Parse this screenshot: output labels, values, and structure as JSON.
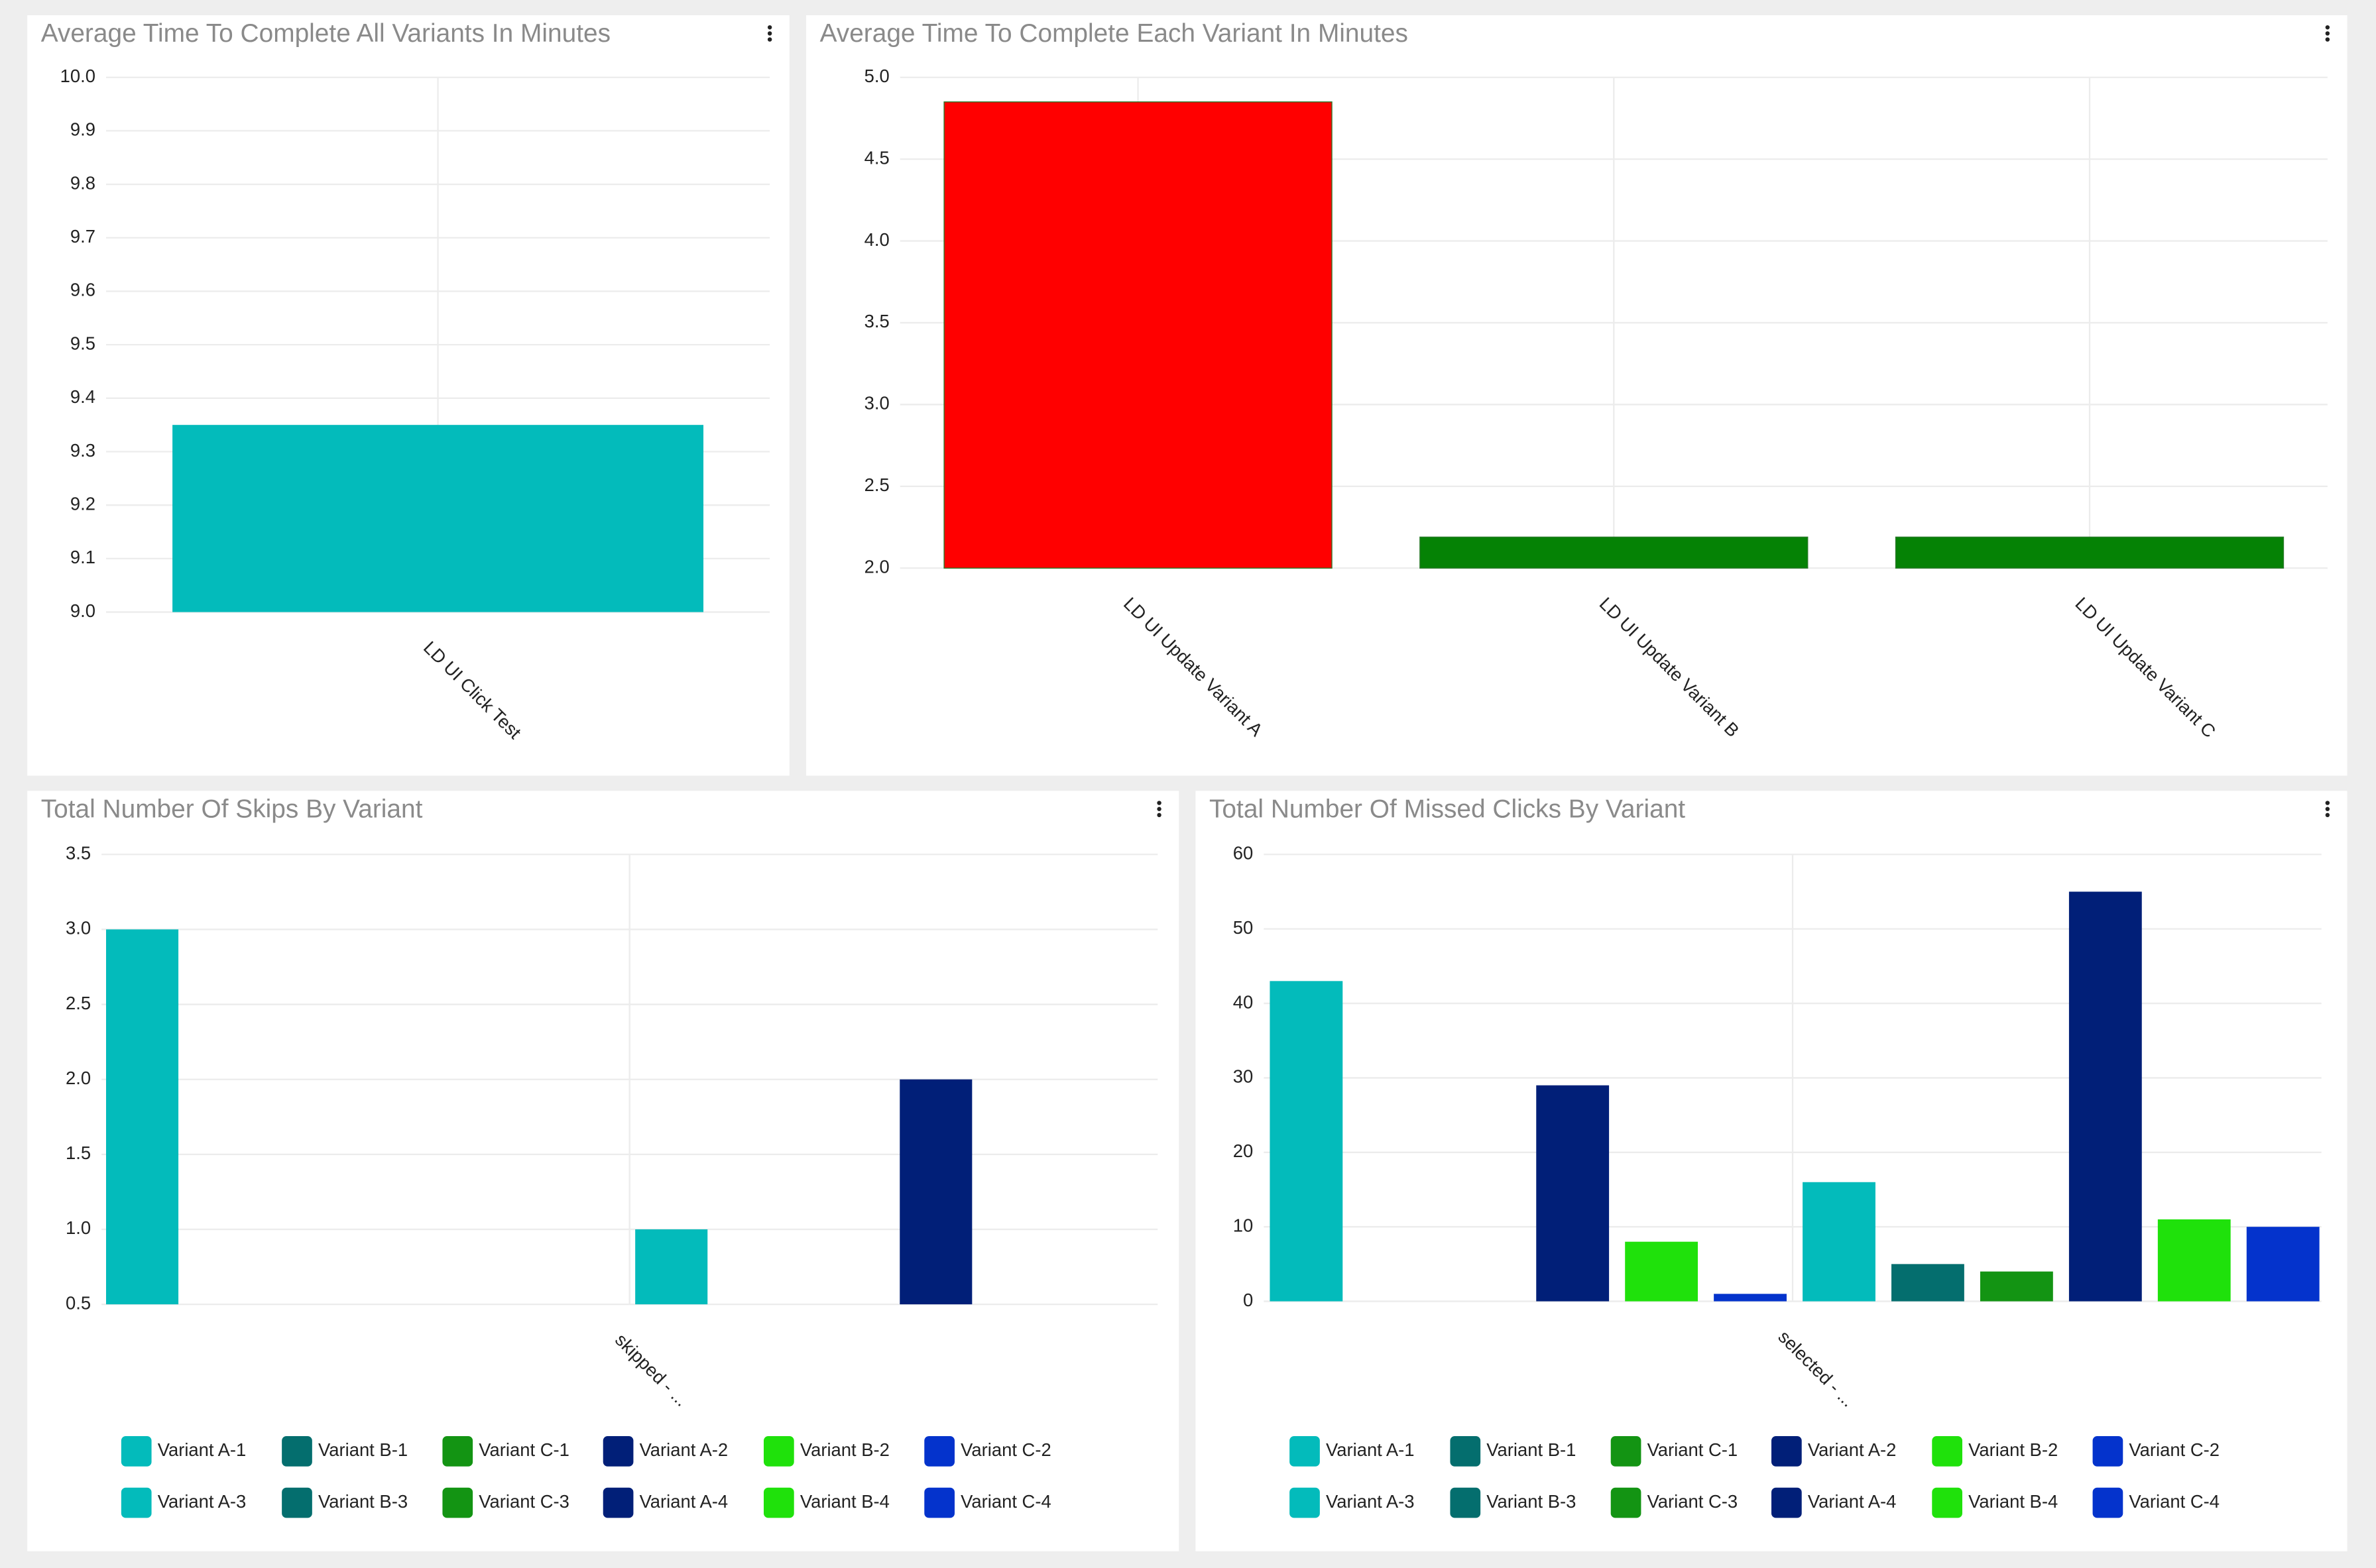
{
  "chart_data": [
    {
      "type": "bar",
      "title": "Average Time To Complete All Variants In Minutes",
      "categories": [
        "LD UI Click Test"
      ],
      "values": [
        9.35
      ],
      "color": "#03bbbb",
      "ylim": [
        9.0,
        10.0
      ],
      "yticks": [
        {
          "value": 9.0,
          "label": "9.0"
        },
        9.1,
        9.2,
        9.3,
        9.4,
        9.5,
        9.6,
        9.7,
        9.8,
        9.9,
        {
          "value": 10.0,
          "label": "10.0"
        }
      ],
      "grid": true
    },
    {
      "type": "bar",
      "title": "Average Time To Complete Each Variant In Minutes",
      "categories": [
        "LD UI Update Variant A",
        "LD UI Update Variant B",
        "LD UI Update Variant C"
      ],
      "values": [
        4.85,
        2.19,
        2.19
      ],
      "colors": [
        "#ff0000",
        "#058205",
        "#058205"
      ],
      "ylim": [
        2.0,
        5.0
      ],
      "yticks": [
        {
          "value": 2.0,
          "label": "2.0"
        },
        2.5,
        {
          "value": 3.0,
          "label": "3.0"
        },
        3.5,
        {
          "value": 4.0,
          "label": "4.0"
        },
        4.5,
        {
          "value": 5.0,
          "label": "5.0"
        }
      ],
      "grid": true
    },
    {
      "type": "grouped_bar",
      "title": "Total Number Of Skips By Variant",
      "categories": [
        "skipped - ..."
      ],
      "series": [
        {
          "name": "Variant A-1",
          "color": "#03bbbb",
          "values": [
            3.0
          ]
        },
        {
          "name": "Variant B-1",
          "color": "#046e6e",
          "values": [
            null
          ]
        },
        {
          "name": "Variant C-1",
          "color": "#139413",
          "values": [
            null
          ]
        },
        {
          "name": "Variant A-2",
          "color": "#011f78",
          "values": [
            null
          ]
        },
        {
          "name": "Variant B-2",
          "color": "#1fe10b",
          "values": [
            null
          ]
        },
        {
          "name": "Variant C-2",
          "color": "#0433cc",
          "values": [
            null
          ]
        },
        {
          "name": "Variant A-3",
          "color": "#03bbbb",
          "values": [
            1.0
          ]
        },
        {
          "name": "Variant B-3",
          "color": "#046e6e",
          "values": [
            null
          ]
        },
        {
          "name": "Variant C-3",
          "color": "#139413",
          "values": [
            null
          ]
        },
        {
          "name": "Variant A-4",
          "color": "#011f78",
          "values": [
            2.0
          ]
        },
        {
          "name": "Variant B-4",
          "color": "#1fe10b",
          "values": [
            null
          ]
        },
        {
          "name": "Variant C-4",
          "color": "#0433cc",
          "values": [
            null
          ]
        }
      ],
      "ylim": [
        0.5,
        3.5
      ],
      "yticks": [
        0.5,
        {
          "value": 1.0,
          "label": "1.0"
        },
        1.5,
        {
          "value": 2.0,
          "label": "2.0"
        },
        2.5,
        {
          "value": 3.0,
          "label": "3.0"
        },
        3.5
      ],
      "grid": true
    },
    {
      "type": "grouped_bar",
      "title": "Total Number Of Missed Clicks By Variant",
      "categories": [
        "selected - ..."
      ],
      "series": [
        {
          "name": "Variant A-1",
          "color": "#03bbbb",
          "values": [
            43
          ]
        },
        {
          "name": "Variant B-1",
          "color": "#046e6e",
          "values": [
            null
          ]
        },
        {
          "name": "Variant C-1",
          "color": "#139413",
          "values": [
            null
          ]
        },
        {
          "name": "Variant A-2",
          "color": "#011f78",
          "values": [
            29
          ]
        },
        {
          "name": "Variant B-2",
          "color": "#1fe10b",
          "values": [
            8
          ]
        },
        {
          "name": "Variant C-2",
          "color": "#0433cc",
          "values": [
            1
          ]
        },
        {
          "name": "Variant A-3",
          "color": "#03bbbb",
          "values": [
            16
          ]
        },
        {
          "name": "Variant B-3",
          "color": "#046e6e",
          "values": [
            5
          ]
        },
        {
          "name": "Variant C-3",
          "color": "#139413",
          "values": [
            4
          ]
        },
        {
          "name": "Variant A-4",
          "color": "#011f78",
          "values": [
            55
          ]
        },
        {
          "name": "Variant B-4",
          "color": "#1fe10b",
          "values": [
            11
          ]
        },
        {
          "name": "Variant C-4",
          "color": "#0433cc",
          "values": [
            10
          ]
        }
      ],
      "ylim": [
        0,
        60
      ],
      "yticks": [
        0,
        10,
        20,
        30,
        40,
        50,
        60
      ],
      "grid": true
    }
  ]
}
